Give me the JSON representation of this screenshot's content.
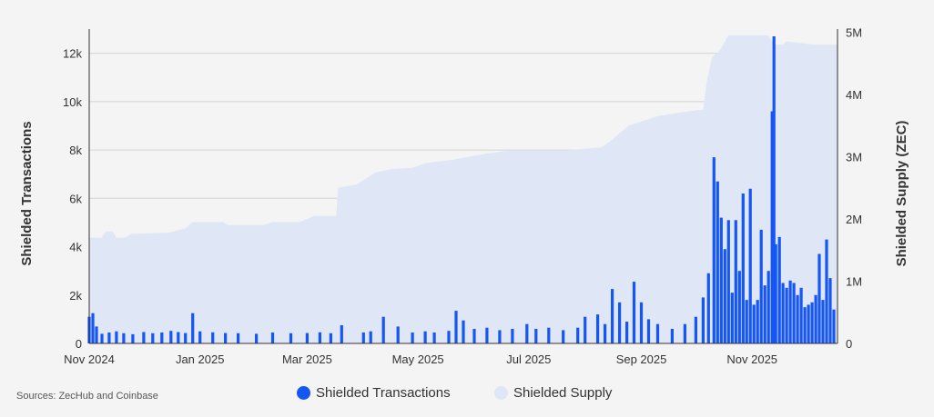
{
  "source": "Sources: ZecHub and Coinbase",
  "colors": {
    "bars": "#1556f5",
    "area": "#dfe6f5",
    "grid": "#d4d4d4",
    "axis": "#333333"
  },
  "chart_data": {
    "type": "bar",
    "title": "",
    "grid": true,
    "legend_position": "bottom-center",
    "x_ticks": [
      "Nov 2024",
      "Jan 2025",
      "Mar 2025",
      "May 2025",
      "Jul 2025",
      "Sep 2025",
      "Nov 2025"
    ],
    "left_axis": {
      "label": "Shielded Transactions",
      "ticks": [
        "0",
        "2k",
        "4k",
        "6k",
        "8k",
        "10k",
        "12k"
      ],
      "range": [
        0,
        13000
      ]
    },
    "right_axis": {
      "label": "Shielded Supply (ZEC)",
      "ticks": [
        "0",
        "1M",
        "2M",
        "3M",
        "4M",
        "5M"
      ],
      "range": [
        0,
        5050000
      ]
    },
    "x_range": [
      "2024-11-01",
      "2025-12-18"
    ],
    "series": [
      {
        "name": "Shielded Transactions",
        "type": "bar",
        "axis": "left",
        "points": [
          [
            "2024-11-01",
            1100
          ],
          [
            "2024-11-03",
            1250
          ],
          [
            "2024-11-05",
            700
          ],
          [
            "2024-11-08",
            400
          ],
          [
            "2024-11-12",
            450
          ],
          [
            "2024-11-16",
            500
          ],
          [
            "2024-11-20",
            420
          ],
          [
            "2024-11-25",
            380
          ],
          [
            "2024-12-01",
            470
          ],
          [
            "2024-12-06",
            420
          ],
          [
            "2024-12-11",
            450
          ],
          [
            "2024-12-16",
            520
          ],
          [
            "2024-12-20",
            470
          ],
          [
            "2024-12-24",
            430
          ],
          [
            "2024-12-28",
            1250
          ],
          [
            "2025-01-01",
            500
          ],
          [
            "2025-01-08",
            460
          ],
          [
            "2025-01-15",
            430
          ],
          [
            "2025-01-22",
            420
          ],
          [
            "2025-02-01",
            400
          ],
          [
            "2025-02-10",
            450
          ],
          [
            "2025-02-20",
            420
          ],
          [
            "2025-03-01",
            430
          ],
          [
            "2025-03-08",
            460
          ],
          [
            "2025-03-14",
            420
          ],
          [
            "2025-03-20",
            750
          ],
          [
            "2025-04-01",
            450
          ],
          [
            "2025-04-05",
            500
          ],
          [
            "2025-04-12",
            1100
          ],
          [
            "2025-04-20",
            700
          ],
          [
            "2025-04-28",
            450
          ],
          [
            "2025-05-05",
            500
          ],
          [
            "2025-05-10",
            450
          ],
          [
            "2025-05-18",
            520
          ],
          [
            "2025-05-22",
            1350
          ],
          [
            "2025-05-26",
            950
          ],
          [
            "2025-06-01",
            600
          ],
          [
            "2025-06-08",
            650
          ],
          [
            "2025-06-15",
            550
          ],
          [
            "2025-06-22",
            600
          ],
          [
            "2025-06-30",
            800
          ],
          [
            "2025-07-05",
            600
          ],
          [
            "2025-07-12",
            650
          ],
          [
            "2025-07-20",
            550
          ],
          [
            "2025-07-28",
            650
          ],
          [
            "2025-08-01",
            1100
          ],
          [
            "2025-08-08",
            1200
          ],
          [
            "2025-08-12",
            800
          ],
          [
            "2025-08-16",
            2250
          ],
          [
            "2025-08-20",
            1700
          ],
          [
            "2025-08-24",
            900
          ],
          [
            "2025-08-28",
            2550
          ],
          [
            "2025-09-01",
            1700
          ],
          [
            "2025-09-05",
            1000
          ],
          [
            "2025-09-10",
            800
          ],
          [
            "2025-09-18",
            600
          ],
          [
            "2025-09-25",
            800
          ],
          [
            "2025-10-01",
            1100
          ],
          [
            "2025-10-05",
            1900
          ],
          [
            "2025-10-08",
            2900
          ],
          [
            "2025-10-11",
            7700
          ],
          [
            "2025-10-13",
            6700
          ],
          [
            "2025-10-15",
            5200
          ],
          [
            "2025-10-17",
            3900
          ],
          [
            "2025-10-19",
            5100
          ],
          [
            "2025-10-21",
            2100
          ],
          [
            "2025-10-23",
            5100
          ],
          [
            "2025-10-25",
            3000
          ],
          [
            "2025-10-27",
            6200
          ],
          [
            "2025-10-29",
            1800
          ],
          [
            "2025-10-31",
            6400
          ],
          [
            "2025-11-02",
            1600
          ],
          [
            "2025-11-04",
            1800
          ],
          [
            "2025-11-06",
            4700
          ],
          [
            "2025-11-08",
            2400
          ],
          [
            "2025-11-10",
            3000
          ],
          [
            "2025-11-12",
            9600
          ],
          [
            "2025-11-13",
            12700
          ],
          [
            "2025-11-14",
            4100
          ],
          [
            "2025-11-16",
            4400
          ],
          [
            "2025-11-18",
            2500
          ],
          [
            "2025-11-20",
            2300
          ],
          [
            "2025-11-22",
            2600
          ],
          [
            "2025-11-24",
            2500
          ],
          [
            "2025-11-26",
            2000
          ],
          [
            "2025-11-28",
            2300
          ],
          [
            "2025-11-30",
            1500
          ],
          [
            "2025-12-02",
            1600
          ],
          [
            "2025-12-04",
            1700
          ],
          [
            "2025-12-06",
            2000
          ],
          [
            "2025-12-08",
            3700
          ],
          [
            "2025-12-10",
            1800
          ],
          [
            "2025-12-12",
            4300
          ],
          [
            "2025-12-14",
            2700
          ],
          [
            "2025-12-16",
            1400
          ]
        ]
      },
      {
        "name": "Shielded Supply",
        "type": "area",
        "axis": "right",
        "points": [
          [
            "2024-11-01",
            1700000
          ],
          [
            "2024-11-08",
            1700000
          ],
          [
            "2024-11-10",
            1800000
          ],
          [
            "2024-11-14",
            1800000
          ],
          [
            "2024-11-16",
            1700000
          ],
          [
            "2024-11-21",
            1700000
          ],
          [
            "2024-11-24",
            1760000
          ],
          [
            "2024-12-15",
            1780000
          ],
          [
            "2024-12-24",
            1850000
          ],
          [
            "2024-12-28",
            1950000
          ],
          [
            "2025-01-14",
            1950000
          ],
          [
            "2025-01-16",
            1900000
          ],
          [
            "2025-02-05",
            1900000
          ],
          [
            "2025-02-10",
            1950000
          ],
          [
            "2025-02-25",
            1950000
          ],
          [
            "2025-03-05",
            2050000
          ],
          [
            "2025-03-17",
            2050000
          ],
          [
            "2025-03-18",
            2500000
          ],
          [
            "2025-03-28",
            2550000
          ],
          [
            "2025-04-08",
            2750000
          ],
          [
            "2025-04-16",
            2800000
          ],
          [
            "2025-04-28",
            2820000
          ],
          [
            "2025-05-06",
            2900000
          ],
          [
            "2025-05-20",
            2950000
          ],
          [
            "2025-06-08",
            3050000
          ],
          [
            "2025-06-20",
            3100000
          ],
          [
            "2025-07-15",
            3100000
          ],
          [
            "2025-07-20",
            3100000
          ],
          [
            "2025-08-10",
            3150000
          ],
          [
            "2025-08-15",
            3250000
          ],
          [
            "2025-08-25",
            3500000
          ],
          [
            "2025-09-10",
            3650000
          ],
          [
            "2025-09-20",
            3700000
          ],
          [
            "2025-10-02",
            3750000
          ],
          [
            "2025-10-05",
            3750000
          ],
          [
            "2025-10-07",
            4200000
          ],
          [
            "2025-10-10",
            4600000
          ],
          [
            "2025-10-14",
            4700000
          ],
          [
            "2025-10-19",
            4950000
          ],
          [
            "2025-11-01",
            4950000
          ],
          [
            "2025-11-10",
            4950000
          ],
          [
            "2025-11-13",
            4800000
          ],
          [
            "2025-11-18",
            4800000
          ],
          [
            "2025-11-20",
            4850000
          ],
          [
            "2025-12-05",
            4800000
          ],
          [
            "2025-12-18",
            4800000
          ]
        ]
      }
    ]
  }
}
